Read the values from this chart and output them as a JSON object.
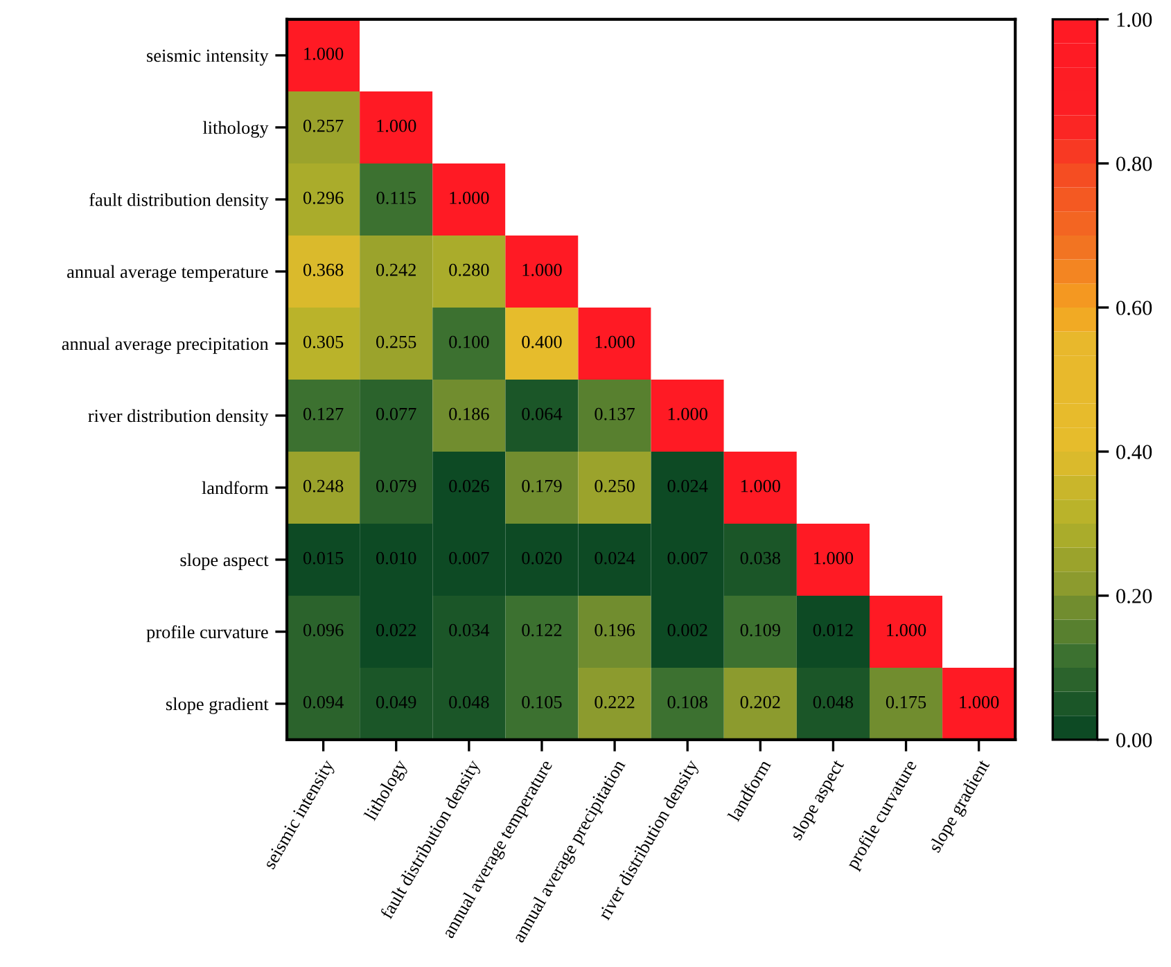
{
  "chart_data": {
    "type": "heatmap",
    "categories": [
      "seismic intensity",
      "lithology",
      "fault distribution density",
      "annual average temperature",
      "annual average precipitation",
      "river distribution density",
      "landform",
      "slope aspect",
      "profile curvature",
      "slope gradient"
    ],
    "y_categories": [
      "seismic intensity",
      "lithology",
      "fault distribution density",
      "annual average temperature",
      "annual average precipitation",
      "river distribution density",
      "landform",
      "slope aspect",
      "profile curvature",
      "slope gradient"
    ],
    "cells": [
      [
        1.0,
        null,
        null,
        null,
        null,
        null,
        null,
        null,
        null,
        null
      ],
      [
        0.257,
        1.0,
        null,
        null,
        null,
        null,
        null,
        null,
        null,
        null
      ],
      [
        0.296,
        0.115,
        1.0,
        null,
        null,
        null,
        null,
        null,
        null,
        null
      ],
      [
        0.368,
        0.242,
        0.28,
        1.0,
        null,
        null,
        null,
        null,
        null,
        null
      ],
      [
        0.305,
        0.255,
        0.1,
        0.4,
        1.0,
        null,
        null,
        null,
        null,
        null
      ],
      [
        0.127,
        0.077,
        0.186,
        0.064,
        0.137,
        1.0,
        null,
        null,
        null,
        null
      ],
      [
        0.248,
        0.079,
        0.026,
        0.179,
        0.25,
        0.024,
        1.0,
        null,
        null,
        null
      ],
      [
        0.015,
        0.01,
        0.007,
        0.02,
        0.024,
        0.007,
        0.038,
        1.0,
        null,
        null
      ],
      [
        0.096,
        0.022,
        0.034,
        0.122,
        0.196,
        0.002,
        0.109,
        0.012,
        1.0,
        null
      ],
      [
        0.094,
        0.049,
        0.048,
        0.105,
        0.222,
        0.108,
        0.202,
        0.048,
        0.175,
        1.0
      ]
    ],
    "cell_labels": [
      [
        "1.000",
        null,
        null,
        null,
        null,
        null,
        null,
        null,
        null,
        null
      ],
      [
        "0.257",
        "1.000",
        null,
        null,
        null,
        null,
        null,
        null,
        null,
        null
      ],
      [
        "0.296",
        "0.115",
        "1.000",
        null,
        null,
        null,
        null,
        null,
        null,
        null
      ],
      [
        "0.368",
        "0.242",
        "0.280",
        "1.000",
        null,
        null,
        null,
        null,
        null,
        null
      ],
      [
        "0.305",
        "0.255",
        "0.100",
        "0.400",
        "1.000",
        null,
        null,
        null,
        null,
        null
      ],
      [
        "0.127",
        "0.077",
        "0.186",
        "0.064",
        "0.137",
        "1.000",
        null,
        null,
        null,
        null
      ],
      [
        "0.248",
        "0.079",
        "0.026",
        "0.179",
        "0.250",
        "0.024",
        "1.000",
        null,
        null,
        null
      ],
      [
        "0.015",
        "0.010",
        "0.007",
        "0.020",
        "0.024",
        "0.007",
        "0.038",
        "1.000",
        null,
        null
      ],
      [
        "0.096",
        "0.022",
        "0.034",
        "0.122",
        "0.196",
        "0.002",
        "0.109",
        "0.012",
        "1.000",
        null
      ],
      [
        "0.094",
        "0.049",
        "0.048",
        "0.105",
        "0.222",
        "0.108",
        "0.202",
        "0.048",
        "0.175",
        "1.000"
      ]
    ],
    "clim": [
      0,
      1
    ],
    "cticks": [
      {
        "value": 0,
        "label": "0.00"
      },
      {
        "value": 0.2,
        "label": "0.20"
      },
      {
        "value": 0.4,
        "label": "0.40"
      },
      {
        "value": 0.6,
        "label": "0.60"
      },
      {
        "value": 0.8,
        "label": "0.80"
      },
      {
        "value": 1,
        "label": "1.00"
      }
    ]
  }
}
